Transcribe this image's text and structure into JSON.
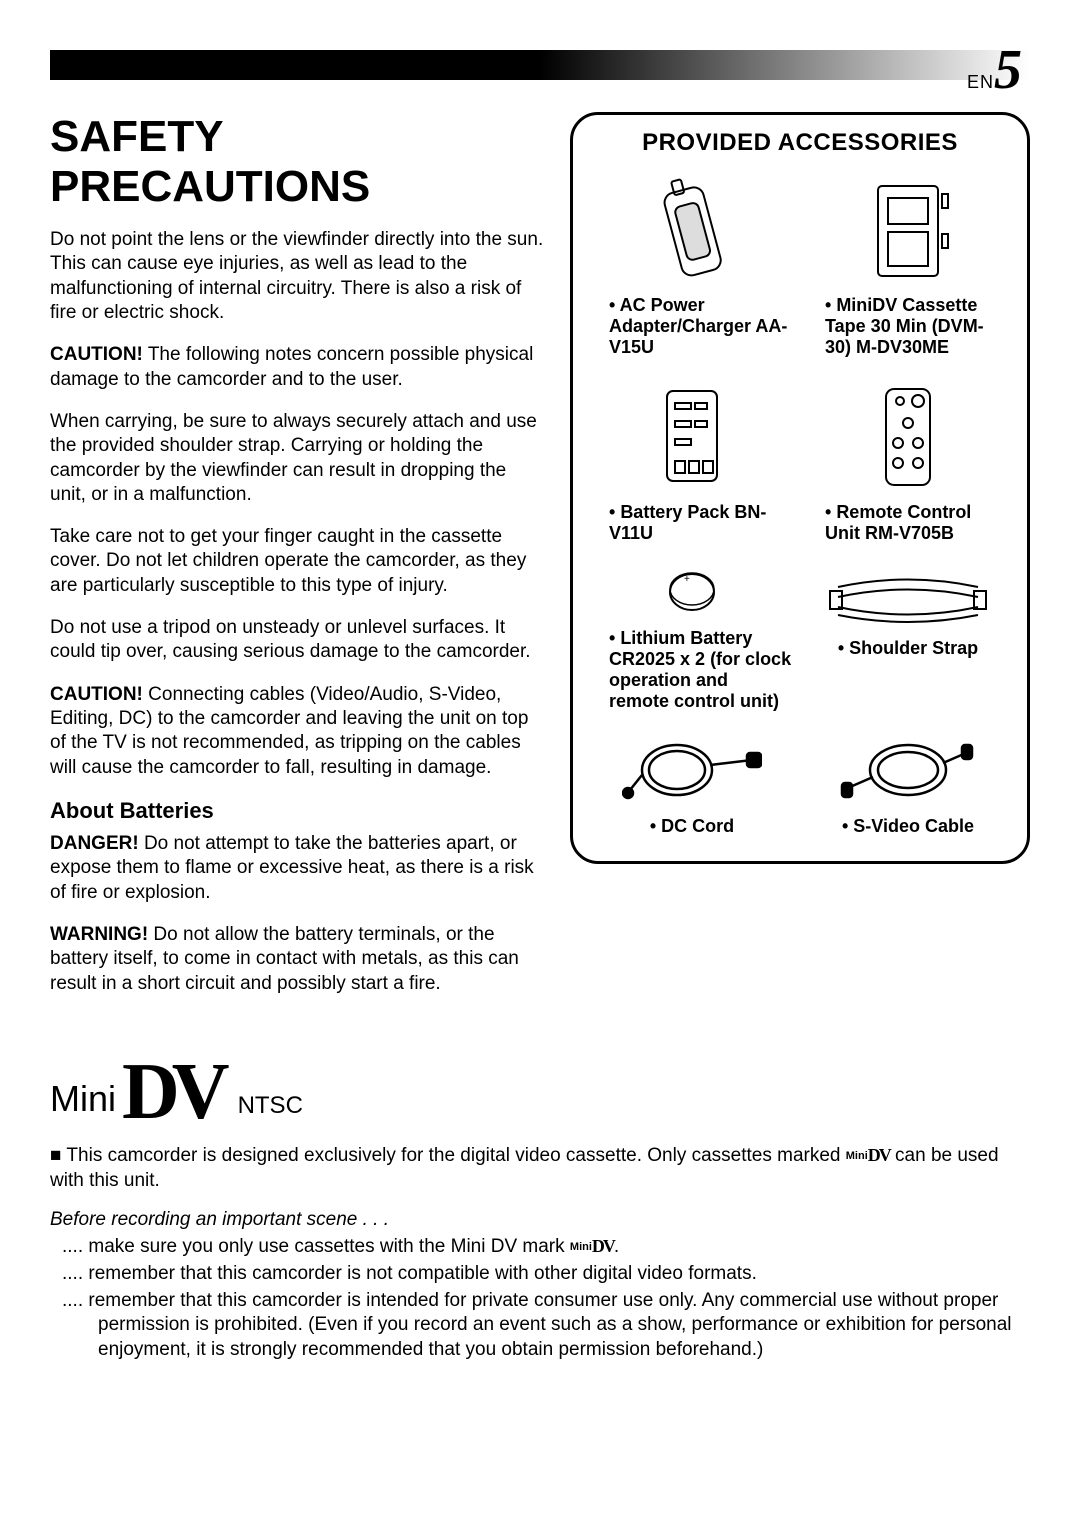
{
  "header": {
    "lang": "EN",
    "page": "5"
  },
  "title": "SAFETY PRECAUTIONS",
  "paragraphs": [
    "Do not point the lens or the viewfinder directly into the sun. This can cause eye injuries, as well as lead to the malfunctioning of internal circuitry. There is also a risk of fire or electric shock.",
    "CAUTION! The following notes concern possible physical damage to the camcorder and to the user.",
    "When carrying, be sure to always securely attach and use the provided shoulder strap. Carrying or holding the camcorder by the viewfinder can result in dropping the unit, or in a malfunction.",
    "Take care not to get your finger caught in the cassette cover. Do not let children operate the camcorder, as they are particularly susceptible to this type of injury.",
    "Do not use a tripod on unsteady or unlevel surfaces. It could tip over, causing serious damage to the camcorder.",
    "CAUTION! Connecting cables (Video/Audio, S-Video, Editing, DC) to the camcorder and leaving the unit on top of the TV is not recommended, as tripping on the cables will cause the camcorder to fall, resulting in damage."
  ],
  "batteries_heading": "About Batteries",
  "batteries_paras": [
    "DANGER! Do not attempt to take the batteries apart, or expose them to flame or excessive heat, as there is a risk of fire or explosion.",
    "WARNING! Do not allow the battery terminals, or the battery itself, to come in contact with metals, as this can result in a short circuit and possibly start a fire."
  ],
  "accessories": {
    "title": "PROVIDED ACCESSORIES",
    "items": [
      {
        "label": "AC Power Adapter/Charger AA-V15U"
      },
      {
        "label": "MiniDV Cassette Tape 30 Min (DVM-30) M-DV30ME"
      },
      {
        "label": "Battery Pack BN-V11U"
      },
      {
        "label": "Remote Control Unit RM-V705B"
      },
      {
        "label": "Lithium Battery CR2025 x 2 (for clock operation and remote control unit)"
      },
      {
        "label": "Shoulder Strap"
      },
      {
        "label": "DC Cord"
      },
      {
        "label": "S-Video Cable"
      }
    ]
  },
  "logo": {
    "mini": "Mini",
    "ntsc": "NTSC"
  },
  "note_line": "This camcorder is designed exclusively for the digital video cassette. Only cassettes marked ",
  "note_line2": " can be used with this unit.",
  "before": "Before recording an important scene . . .",
  "dots": [
    ".... make sure you only use cassettes with the Mini DV mark ",
    ".... remember that this camcorder is not compatible with other digital video formats.",
    ".... remember that this camcorder is intended for private consumer use only. Any commercial use without proper permission is prohibited. (Even if you record an event such as a show, performance or exhibition for personal enjoyment, it is strongly recommended that you obtain permission beforehand.)"
  ]
}
